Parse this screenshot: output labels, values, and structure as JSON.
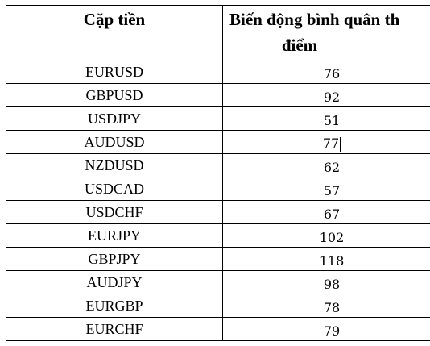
{
  "table": {
    "header_pair": "Cặp tiền",
    "header_move_line1": "Biến động  bình quân th",
    "header_move_line2": "điểm",
    "rows": [
      {
        "pair": "EURUSD",
        "value": "76"
      },
      {
        "pair": "GBPUSD",
        "value": "92"
      },
      {
        "pair": "USDJPY",
        "value": "51"
      },
      {
        "pair": "AUDUSD",
        "value": "77"
      },
      {
        "pair": "NZDUSD",
        "value": "62"
      },
      {
        "pair": "USDCAD",
        "value": "57"
      },
      {
        "pair": "USDCHF",
        "value": "67"
      },
      {
        "pair": "EURJPY",
        "value": "102"
      },
      {
        "pair": "GBPJPY",
        "value": "118"
      },
      {
        "pair": "AUDJPY",
        "value": "98"
      },
      {
        "pair": "EURGBP",
        "value": "78"
      },
      {
        "pair": "EURCHF",
        "value": "79"
      }
    ]
  }
}
